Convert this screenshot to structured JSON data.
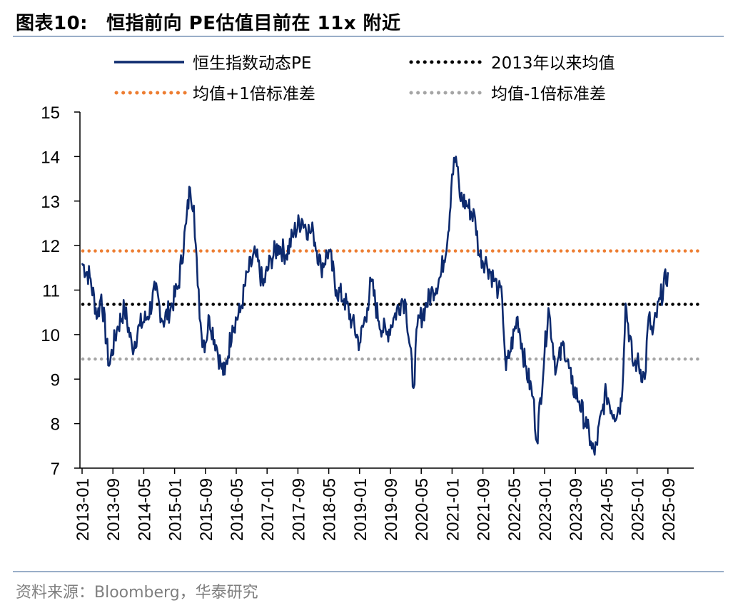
{
  "header": {
    "label": "图表10:",
    "title": "恒指前向 PE估值目前在 11x 附近"
  },
  "footer": {
    "source": "资料来源：Bloomberg，华泰研究"
  },
  "colors": {
    "series": "#0d2a6e",
    "mean": "#000000",
    "upper": "#ed7d31",
    "lower": "#a5a5a5",
    "rule": "#9aaec8"
  },
  "chart_data": {
    "type": "line",
    "title": "恒指前向 PE估值目前在 11x 附近",
    "xlabel": "",
    "ylabel": "",
    "ylim": [
      7,
      15
    ],
    "yticks": [
      "7",
      "8",
      "9",
      "10",
      "11",
      "12",
      "13",
      "14",
      "15"
    ],
    "xticks": [
      "2013-01",
      "2013-09",
      "2014-05",
      "2015-01",
      "2015-09",
      "2016-05",
      "2017-01",
      "2017-09",
      "2018-05",
      "2019-01",
      "2019-09",
      "2020-05",
      "2021-01",
      "2021-09",
      "2022-05",
      "2023-01",
      "2023-09",
      "2024-05",
      "2025-01",
      "2025-09"
    ],
    "legend_position": "top",
    "grid": false,
    "series": [
      {
        "name": "恒生指数动态PE",
        "style": "solid",
        "x": [
          "2013-01",
          "2013-03",
          "2013-05",
          "2013-06",
          "2013-08",
          "2013-10",
          "2013-12",
          "2014-02",
          "2014-04",
          "2014-06",
          "2014-08",
          "2014-10",
          "2014-12",
          "2015-02",
          "2015-04",
          "2015-05",
          "2015-06",
          "2015-07",
          "2015-08",
          "2015-09",
          "2015-10",
          "2015-12",
          "2016-01",
          "2016-02",
          "2016-04",
          "2016-06",
          "2016-08",
          "2016-10",
          "2016-12",
          "2017-02",
          "2017-04",
          "2017-06",
          "2017-08",
          "2017-10",
          "2017-12",
          "2018-01",
          "2018-03",
          "2018-05",
          "2018-07",
          "2018-09",
          "2018-11",
          "2019-01",
          "2019-03",
          "2019-04",
          "2019-06",
          "2019-08",
          "2019-10",
          "2019-12",
          "2020-01",
          "2020-03",
          "2020-04",
          "2020-06",
          "2020-08",
          "2020-10",
          "2020-12",
          "2021-01",
          "2021-02",
          "2021-03",
          "2021-05",
          "2021-07",
          "2021-08",
          "2021-10",
          "2021-12",
          "2022-01",
          "2022-02",
          "2022-03",
          "2022-04",
          "2022-06",
          "2022-08",
          "2022-10",
          "2022-11",
          "2023-01",
          "2023-02",
          "2023-04",
          "2023-06",
          "2023-08",
          "2023-10",
          "2023-12",
          "2024-01",
          "2024-02",
          "2024-04",
          "2024-05",
          "2024-07",
          "2024-09",
          "2024-10",
          "2024-12",
          "2025-01",
          "2025-03",
          "2025-04",
          "2025-05",
          "2025-07",
          "2025-09"
        ],
        "values": [
          11.6,
          11.3,
          10.4,
          10.9,
          9.3,
          10.1,
          10.6,
          9.7,
          10.2,
          10.4,
          11.0,
          10.3,
          10.6,
          11.1,
          12.5,
          13.3,
          12.9,
          11.1,
          10.0,
          9.8,
          10.4,
          9.7,
          9.3,
          9.1,
          10.2,
          10.5,
          11.4,
          11.8,
          11.1,
          11.7,
          12.0,
          11.8,
          12.3,
          12.6,
          12.3,
          12.3,
          11.5,
          11.9,
          11.0,
          10.8,
          10.3,
          9.8,
          10.6,
          11.2,
          10.3,
          10.0,
          10.4,
          10.8,
          10.7,
          8.8,
          10.2,
          10.6,
          11.0,
          11.3,
          12.3,
          13.6,
          14.0,
          13.1,
          12.9,
          12.6,
          11.8,
          11.6,
          11.2,
          11.0,
          10.8,
          9.2,
          9.6,
          10.4,
          9.3,
          8.6,
          7.6,
          9.6,
          10.6,
          9.2,
          9.8,
          8.9,
          8.5,
          7.9,
          7.6,
          7.3,
          8.3,
          8.7,
          8.2,
          8.5,
          10.7,
          9.3,
          9.4,
          9.0,
          10.4,
          10.0,
          10.8,
          11.4
        ]
      },
      {
        "name": "2013年以来均值",
        "style": "dotted",
        "value": 10.68
      },
      {
        "name": "均值+1倍标准差",
        "style": "dotted",
        "value": 11.88
      },
      {
        "name": "均值-1倍标准差",
        "style": "dotted",
        "value": 9.45
      }
    ]
  }
}
